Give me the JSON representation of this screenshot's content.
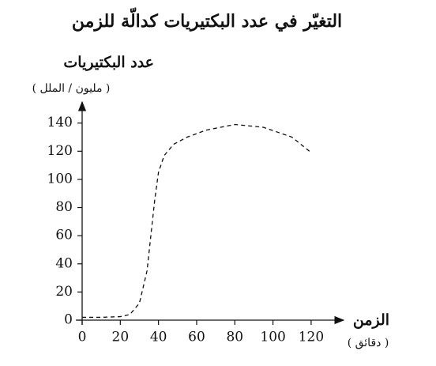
{
  "chart_data": {
    "type": "line",
    "title": "التغيّر في عدد البكتيريات كدالّة للزمن",
    "y_label": "عدد البكتيريات",
    "y_unit": "( مليون / الملل )",
    "x_label": "الزمن",
    "x_unit": "( دقائق )",
    "x": [
      0,
      10,
      20,
      25,
      30,
      34,
      38,
      40,
      43,
      48,
      55,
      65,
      80,
      95,
      110,
      120
    ],
    "series": [
      {
        "color": "#111111",
        "dashed": true,
        "values": [
          2,
          2,
          2.5,
          4,
          12,
          35,
          85,
          105,
          117,
          125,
          130,
          135,
          139,
          137,
          130,
          119
        ]
      }
    ],
    "xlim": [
      0,
      137
    ],
    "ylim": [
      0,
      155
    ],
    "xticks": [
      0,
      20,
      40,
      60,
      80,
      100,
      120
    ],
    "yticks": [
      0,
      20,
      40,
      60,
      80,
      100,
      120,
      140
    ]
  }
}
